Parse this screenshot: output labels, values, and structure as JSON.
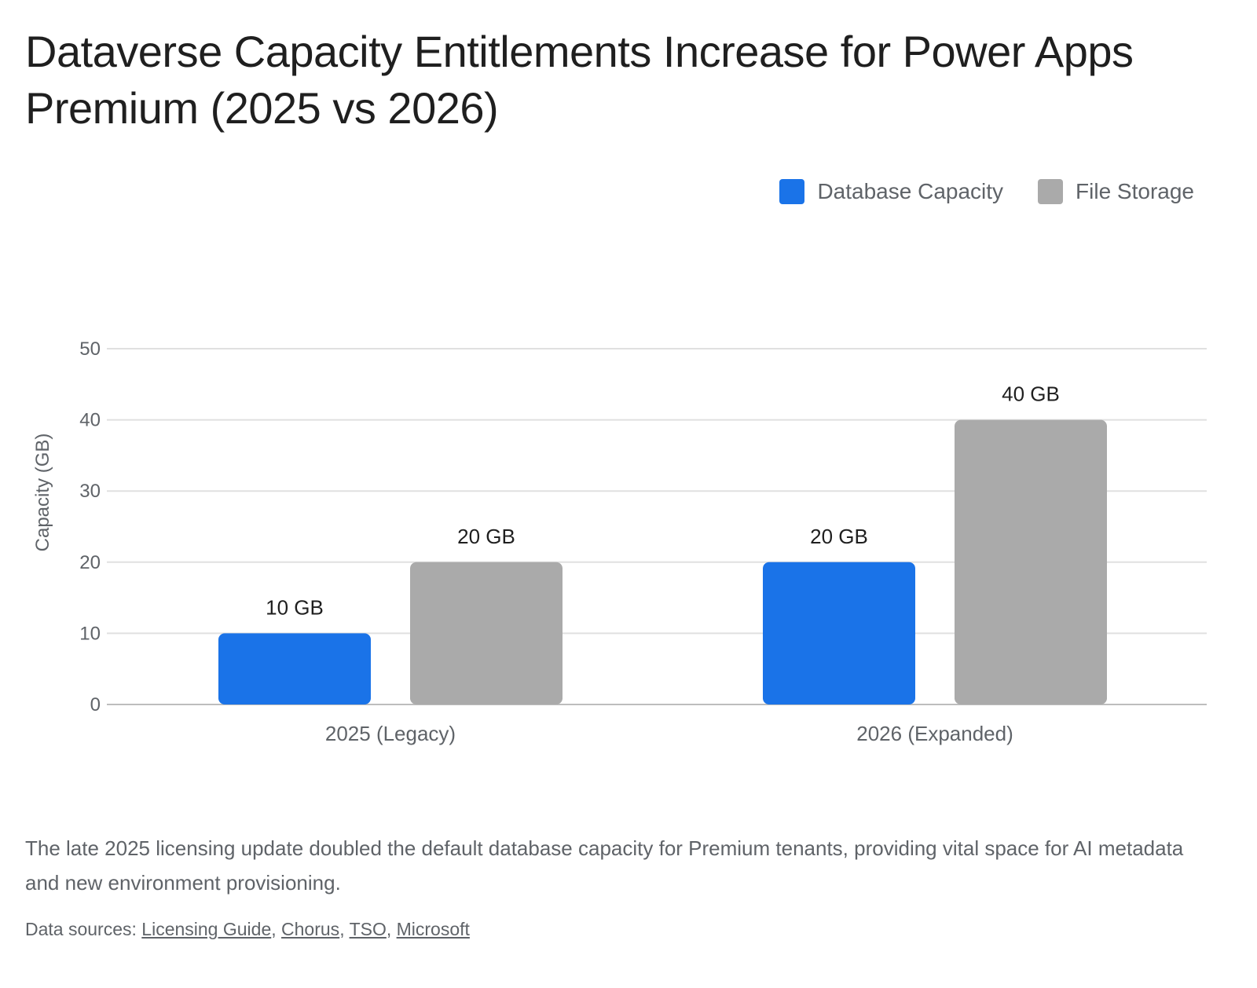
{
  "title": "Dataverse Capacity Entitlements Increase for Power Apps Premium (2025 vs 2026)",
  "legend": [
    {
      "label": "Database Capacity",
      "color": "#1a73e8"
    },
    {
      "label": "File Storage",
      "color": "#aaaaaa"
    }
  ],
  "caption": "The late 2025 licensing update doubled the default database capacity for Premium tenants, providing vital space for AI metadata and new environment provisioning.",
  "sources": {
    "prefix": "Data sources: ",
    "links": [
      "Licensing Guide",
      "Chorus",
      "TSO",
      "Microsoft"
    ]
  },
  "chart_data": {
    "type": "bar",
    "title": "Dataverse Capacity Entitlements Increase for Power Apps Premium (2025 vs 2026)",
    "categories": [
      "2025 (Legacy)",
      "2026 (Expanded)"
    ],
    "series": [
      {
        "name": "Database Capacity",
        "color": "#1a73e8",
        "values": [
          10,
          20
        ],
        "labels": [
          "10 GB",
          "20 GB"
        ]
      },
      {
        "name": "File Storage",
        "color": "#aaaaaa",
        "values": [
          20,
          40
        ],
        "labels": [
          "20 GB",
          "40 GB"
        ]
      }
    ],
    "xlabel": "",
    "ylabel": "Capacity (GB)",
    "ylim": [
      0,
      50
    ],
    "yticks": [
      0,
      10,
      20,
      30,
      40,
      50
    ],
    "grid": true,
    "legend_position": "top-right"
  }
}
